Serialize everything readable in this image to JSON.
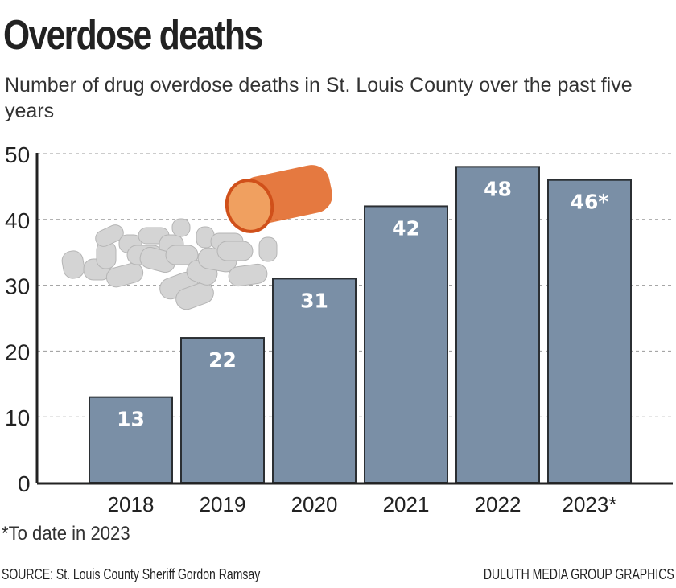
{
  "chart_data": {
    "type": "bar",
    "title": "Overdose deaths",
    "subtitle": "Number of drug overdose deaths in St. Louis County over the past five years",
    "categories": [
      "2018",
      "2019",
      "2020",
      "2021",
      "2022",
      "2023*"
    ],
    "values": [
      13,
      22,
      31,
      42,
      48,
      46
    ],
    "data_labels": [
      "13",
      "22",
      "31",
      "42",
      "48",
      "46*"
    ],
    "ylim": [
      0,
      50
    ],
    "yticks": [
      0,
      10,
      20,
      30,
      40,
      50
    ],
    "grid": true,
    "xlabel": "",
    "ylabel": "",
    "bar_color": "#7a8fa6",
    "bar_outline": "#2b2f33",
    "footnote": "*To date in 2023",
    "source": "SOURCE: St. Louis County Sheriff Gordon Ramsay",
    "credit": "DULUTH MEDIA GROUP GRAPHICS",
    "illustration": "spilled-pill-bottle"
  }
}
